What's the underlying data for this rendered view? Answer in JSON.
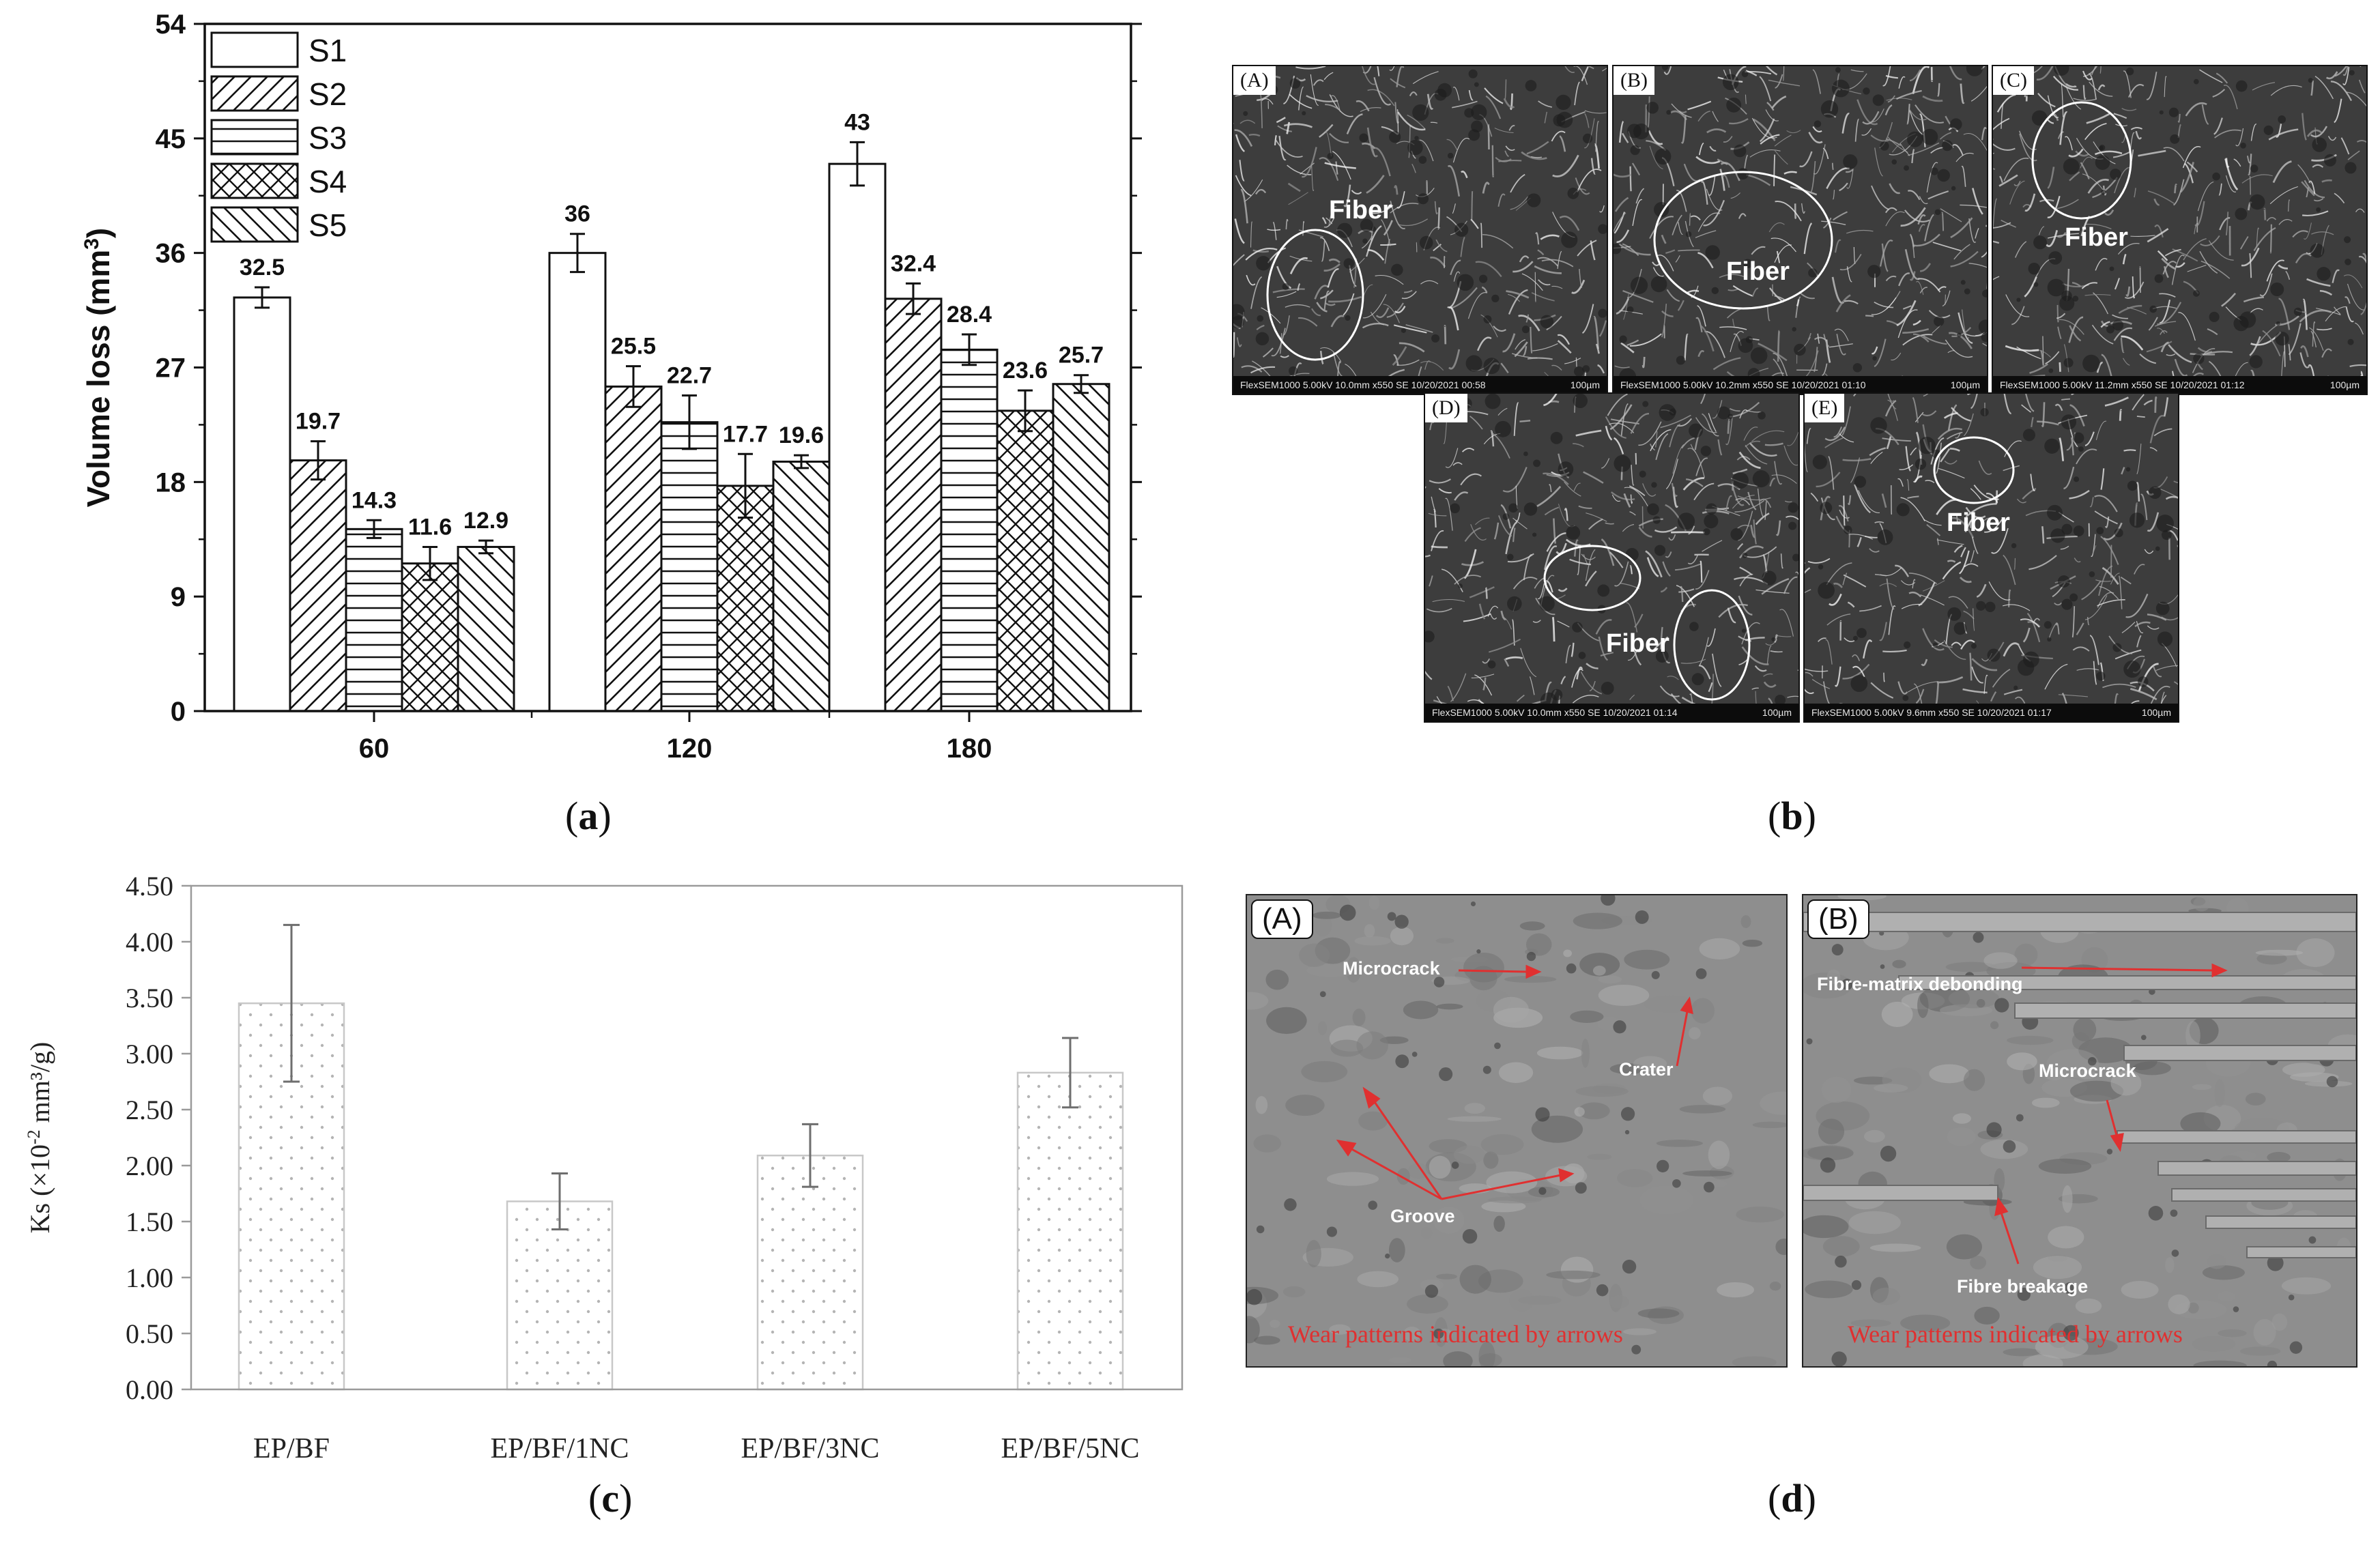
{
  "captions": {
    "a": "a",
    "b": "b",
    "c": "c",
    "d": "d"
  },
  "chart_data": [
    {
      "type": "bar",
      "panel": "a",
      "ylabel": "Volume loss (mm",
      "ylabel_sup": "3",
      "ylabel_close": ")",
      "ylim": [
        0,
        54
      ],
      "yticks": [
        "0",
        "9",
        "18",
        "27",
        "36",
        "45",
        "54"
      ],
      "categories": [
        "60",
        "120",
        "180"
      ],
      "legend_position": "top-left",
      "series": [
        {
          "name": "S1",
          "pattern": "none",
          "values": [
            32.5,
            36,
            43
          ],
          "errors": [
            0.8,
            1.5,
            1.7
          ],
          "labels": [
            "32.5",
            "36",
            "43"
          ]
        },
        {
          "name": "S2",
          "pattern": "diag-up",
          "values": [
            19.7,
            25.5,
            32.4
          ],
          "errors": [
            1.5,
            1.6,
            1.2
          ],
          "labels": [
            "19.7",
            "25.5",
            "32.4"
          ]
        },
        {
          "name": "S3",
          "pattern": "horiz",
          "values": [
            14.3,
            22.7,
            28.4
          ],
          "errors": [
            0.7,
            2.1,
            1.2
          ],
          "labels": [
            "14.3",
            "22.7",
            "28.4"
          ]
        },
        {
          "name": "S4",
          "pattern": "cross",
          "values": [
            11.6,
            17.7,
            23.6
          ],
          "errors": [
            1.3,
            2.5,
            1.6
          ],
          "labels": [
            "11.6",
            "17.7",
            "23.6"
          ]
        },
        {
          "name": "S5",
          "pattern": "diag-down",
          "values": [
            12.9,
            19.6,
            25.7
          ],
          "errors": [
            0.5,
            0.5,
            0.7
          ],
          "labels": [
            "12.9",
            "19.6",
            "25.7"
          ]
        }
      ]
    },
    {
      "type": "bar",
      "panel": "c",
      "ylabel": "Ks (×10",
      "ylabel_sup": "-2",
      "ylabel_close": " mm³/g)",
      "ylim": [
        0,
        4.5
      ],
      "yticks": [
        "0.00",
        "0.50",
        "1.00",
        "1.50",
        "2.00",
        "2.50",
        "3.00",
        "3.50",
        "4.00",
        "4.50"
      ],
      "categories": [
        "EP/BF",
        "EP/BF/1NC",
        "EP/BF/3NC",
        "EP/BF/5NC"
      ],
      "values": [
        3.45,
        1.68,
        2.09,
        2.83
      ],
      "errors": [
        0.7,
        0.25,
        0.28,
        0.31
      ]
    }
  ],
  "panel_b": {
    "tiles": [
      {
        "letter": "(A)",
        "label": "Fiber",
        "footer_left": "FlexSEM1000 5.00kV 10.0mm x550 SE 10/20/2021 00:58",
        "footer_right": "100µm"
      },
      {
        "letter": "(B)",
        "label": "Fiber",
        "footer_left": "FlexSEM1000 5.00kV 10.2mm x550 SE 10/20/2021 01:10",
        "footer_right": "100µm"
      },
      {
        "letter": "(C)",
        "label": "Fiber",
        "footer_left": "FlexSEM1000 5.00kV 11.2mm x550 SE 10/20/2021 01:12",
        "footer_right": "100µm"
      },
      {
        "letter": "(D)",
        "label": "Fiber",
        "footer_left": "FlexSEM1000 5.00kV 10.0mm x550 SE 10/20/2021 01:14",
        "footer_right": "100µm"
      },
      {
        "letter": "(E)",
        "label": "Fiber",
        "footer_left": "FlexSEM1000 5.00kV 9.6mm x550 SE 10/20/2021 01:17",
        "footer_right": "100µm"
      }
    ]
  },
  "panel_d": {
    "left": {
      "letter": "(A)",
      "labels": {
        "microcrack": "Microcrack",
        "crater": "Crater",
        "groove": "Groove"
      },
      "footer": "Wear patterns indicated by arrows"
    },
    "right": {
      "letter": "(B)",
      "labels": {
        "debonding": "Fibre-matrix debonding",
        "microcrack": "Microcrack",
        "breakage": "Fibre breakage"
      },
      "footer": "Wear patterns indicated by arrows"
    },
    "arrow_color": "#e03030"
  },
  "colors": {
    "axis": "#111111",
    "chart_c_axis": "#9a9a9a",
    "chart_c_bar_border": "#c8c8c8",
    "chart_c_dots": "#b4b4b4",
    "error_c": "#6e6e6e"
  }
}
